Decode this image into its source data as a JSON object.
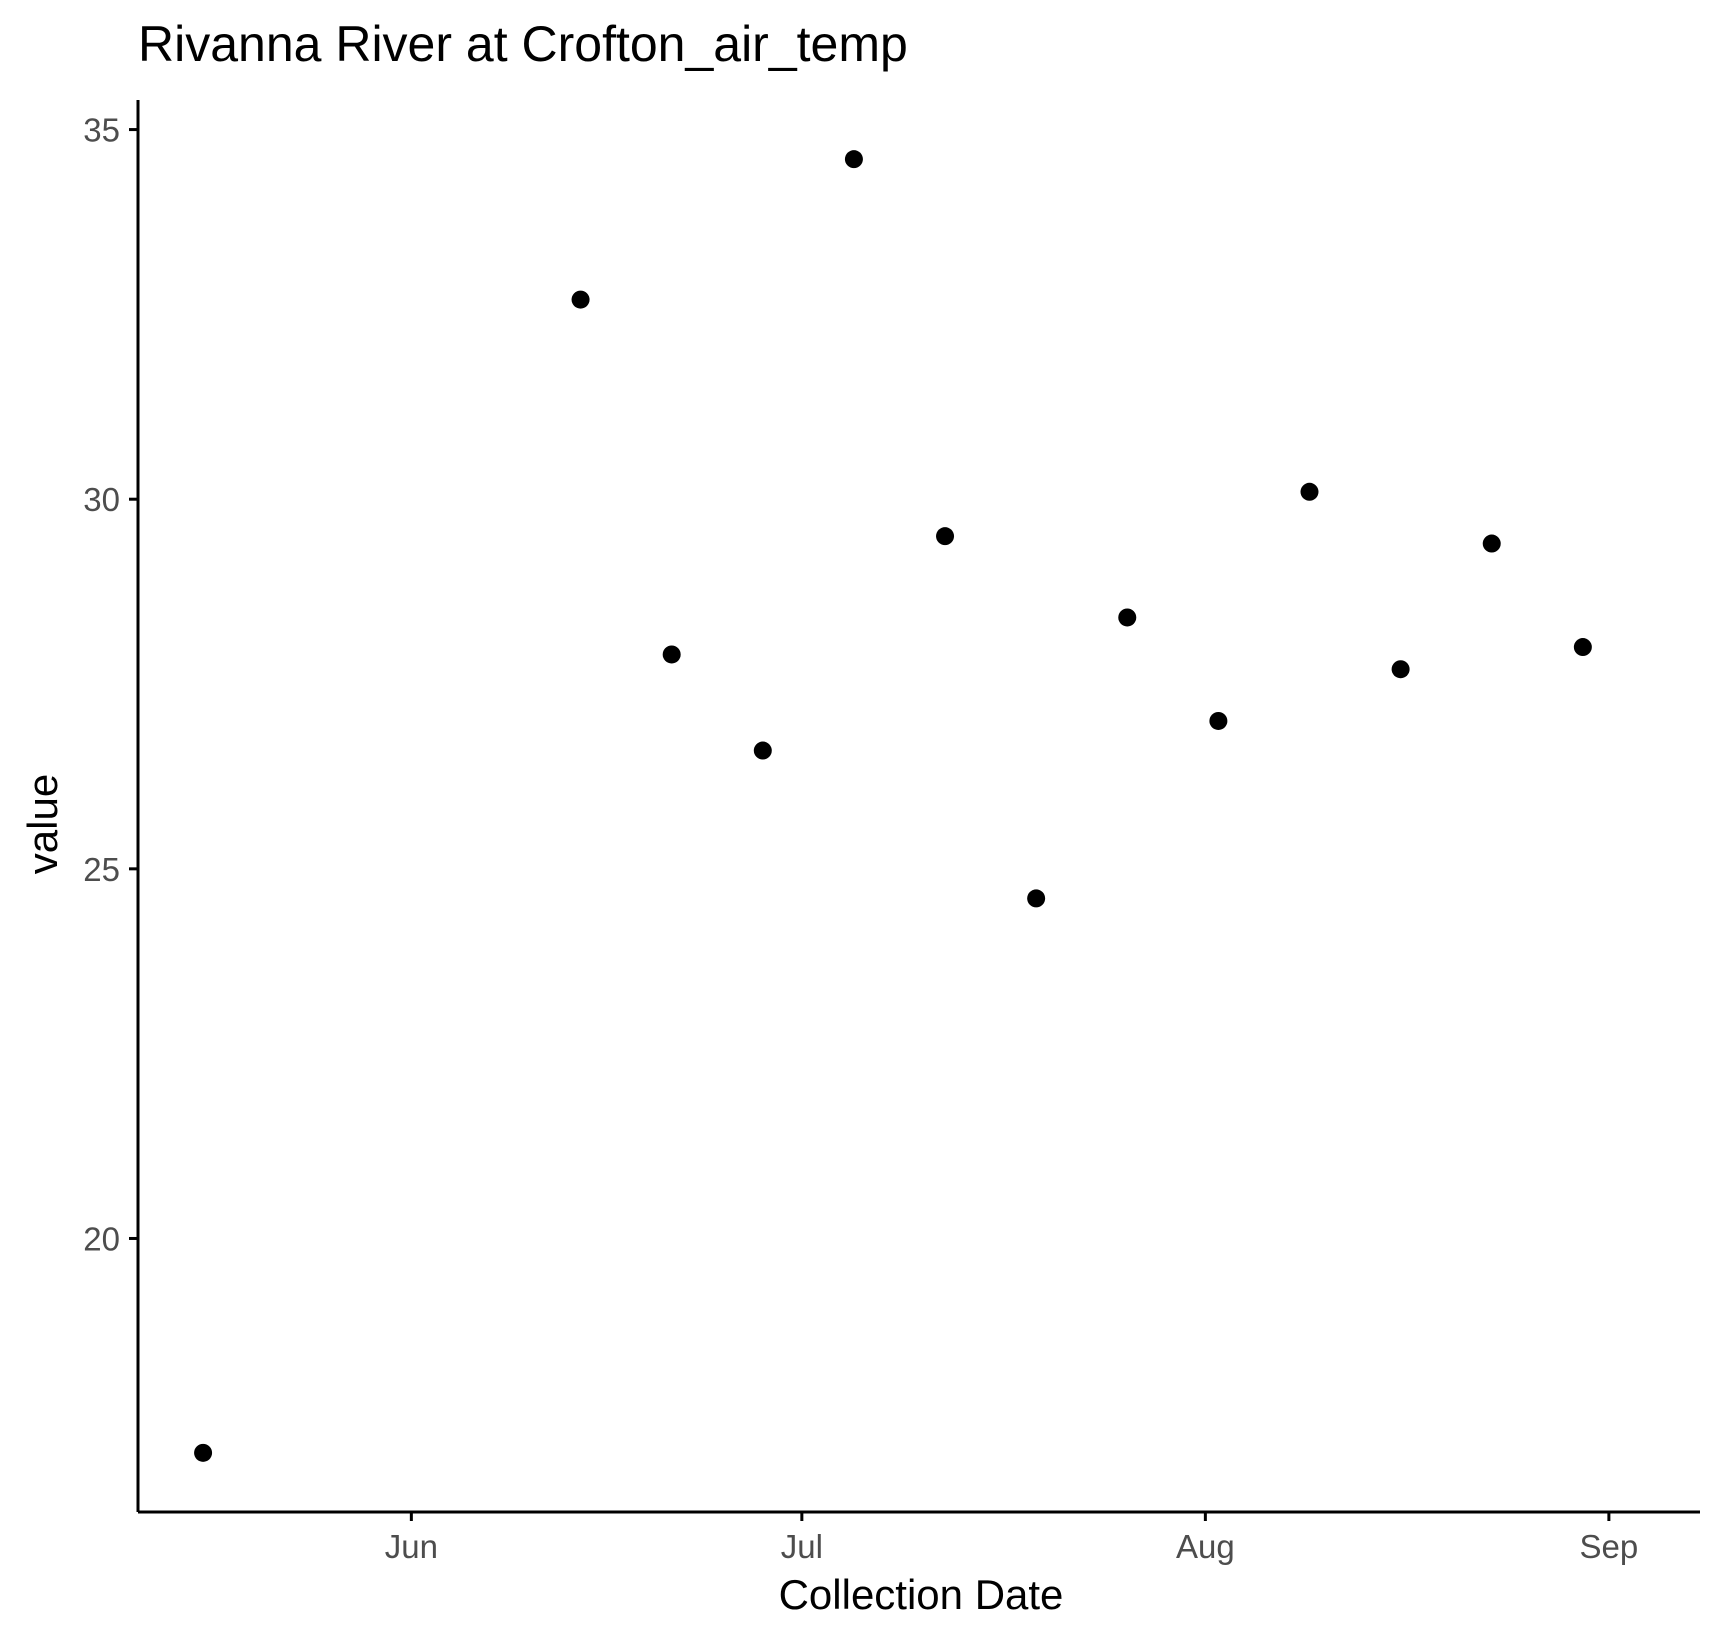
{
  "chart_data": {
    "type": "scatter",
    "title": "Rivanna River at Crofton_air_temp",
    "xlabel": "Collection Date",
    "ylabel": "value",
    "x_ticks": [
      {
        "label": "Jun",
        "date": "2019-06-01"
      },
      {
        "label": "Jul",
        "date": "2019-07-01"
      },
      {
        "label": "Aug",
        "date": "2019-08-01"
      },
      {
        "label": "Sep",
        "date": "2019-09-01"
      }
    ],
    "y_ticks": [
      20,
      25,
      30,
      35
    ],
    "xlim": [
      "2019-05-11",
      "2019-09-08"
    ],
    "ylim": [
      16.3,
      35.4
    ],
    "grid": false,
    "legend": "none",
    "point_color": "#000000",
    "points": [
      {
        "x": "2019-05-16",
        "y": 17.1
      },
      {
        "x": "2019-06-14",
        "y": 32.7
      },
      {
        "x": "2019-06-21",
        "y": 27.9
      },
      {
        "x": "2019-06-28",
        "y": 26.6
      },
      {
        "x": "2019-07-05",
        "y": 34.6
      },
      {
        "x": "2019-07-12",
        "y": 29.5
      },
      {
        "x": "2019-07-19",
        "y": 24.6
      },
      {
        "x": "2019-07-26",
        "y": 28.4
      },
      {
        "x": "2019-08-02",
        "y": 27.0
      },
      {
        "x": "2019-08-09",
        "y": 30.1
      },
      {
        "x": "2019-08-16",
        "y": 27.7
      },
      {
        "x": "2019-08-23",
        "y": 29.4
      },
      {
        "x": "2019-08-30",
        "y": 28.0
      }
    ]
  }
}
